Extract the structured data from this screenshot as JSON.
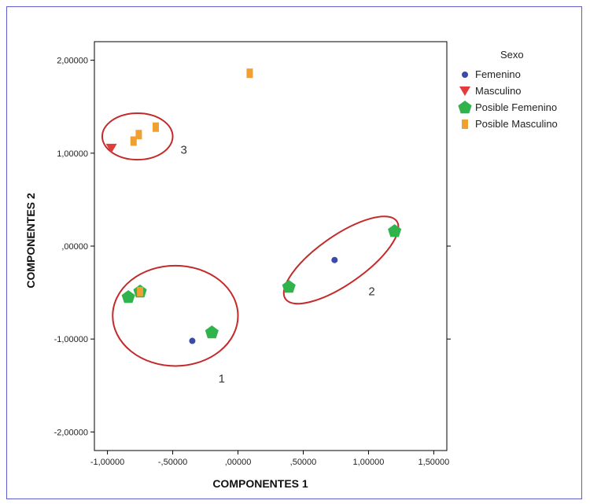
{
  "chart_data": {
    "type": "scatter",
    "xlabel": "COMPONENTES 1",
    "ylabel": "COMPONENTES 2",
    "xlim": [
      -1.1,
      1.6
    ],
    "ylim": [
      -2.2,
      2.2
    ],
    "x_ticks": [
      -1.0,
      -0.5,
      0.0,
      0.5,
      1.0,
      1.5
    ],
    "x_tick_labels": [
      "-1,00000",
      "-,50000",
      ",00000",
      ",50000",
      "1,00000",
      "1,50000"
    ],
    "y_ticks": [
      2.0,
      1.0,
      0.0,
      -1.0,
      -2.0
    ],
    "y_tick_labels": [
      "2,00000",
      "1,00000",
      ",00000",
      "-1,00000",
      "-2,00000"
    ],
    "legend": {
      "title": "Sexo",
      "placement": "right",
      "entries": [
        "Femenino",
        "Masculino",
        "Posible Femenino",
        "Posible Masculino"
      ]
    },
    "series": [
      {
        "name": "Femenino",
        "marker": "circle",
        "color": "#3b4aa8",
        "points": [
          {
            "x": 0.74,
            "y": -0.15
          },
          {
            "x": -0.35,
            "y": -1.02
          }
        ]
      },
      {
        "name": "Masculino",
        "marker": "triangle-down",
        "color": "#e03c3c",
        "points": [
          {
            "x": -0.97,
            "y": 1.05
          }
        ]
      },
      {
        "name": "Posible Femenino",
        "marker": "pentagon",
        "color": "#2fb34a",
        "points": [
          {
            "x": 1.2,
            "y": 0.16
          },
          {
            "x": 0.39,
            "y": -0.44
          },
          {
            "x": -0.75,
            "y": -0.49
          },
          {
            "x": -0.84,
            "y": -0.55
          },
          {
            "x": -0.2,
            "y": -0.93
          }
        ]
      },
      {
        "name": "Posible Masculino",
        "marker": "square",
        "color": "#f0a030",
        "points": [
          {
            "x": 0.09,
            "y": 1.86
          },
          {
            "x": -0.63,
            "y": 1.28
          },
          {
            "x": -0.76,
            "y": 1.2
          },
          {
            "x": -0.8,
            "y": 1.13
          },
          {
            "x": -0.75,
            "y": -0.49
          }
        ]
      }
    ],
    "annotations": [
      {
        "label": "3",
        "kind": "cluster-ellipse",
        "cx": -0.77,
        "cy": 1.18,
        "rx": 0.27,
        "ry": 0.25,
        "rotate": 0
      },
      {
        "label": "1",
        "kind": "cluster-ellipse",
        "cx": -0.48,
        "cy": -0.75,
        "rx": 0.48,
        "ry": 0.54,
        "rotate": 0
      },
      {
        "label": "2",
        "kind": "cluster-ellipse",
        "cx": 0.79,
        "cy": -0.15,
        "rx": 0.52,
        "ry": 0.26,
        "rotate": -35
      }
    ],
    "grid": false,
    "ellipse_color": "#c42a2a"
  }
}
